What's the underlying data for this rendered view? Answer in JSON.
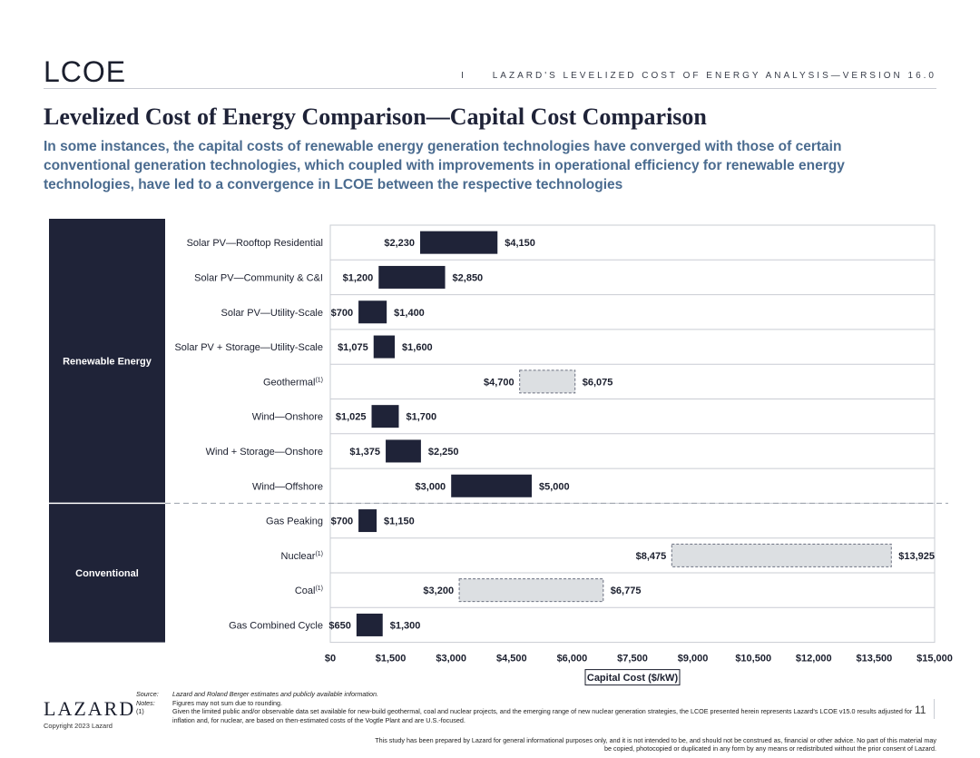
{
  "header": {
    "logo_text": "LCOE",
    "section_marker": "I",
    "report_title": "LAZARD'S LEVELIZED COST OF ENERGY ANALYSIS—VERSION 16.0"
  },
  "page": {
    "title": "Levelized Cost of Energy Comparison—Capital Cost Comparison",
    "subtitle": "In some instances, the capital costs of renewable energy generation technologies have converged with those of certain conventional generation technologies, which coupled with improvements in operational efficiency for renewable energy technologies, have led to a convergence in LCOE between the respective technologies"
  },
  "chart_data": {
    "type": "bar",
    "subtype": "floating-range-horizontal",
    "xlabel": "Capital Cost ($/kW)",
    "xlim": [
      0,
      15000
    ],
    "xticks": [
      "$0",
      "$1,500",
      "$3,000",
      "$4,500",
      "$6,000",
      "$7,500",
      "$9,000",
      "$10,500",
      "$12,000",
      "$13,500",
      "$15,000"
    ],
    "groups": [
      {
        "name": "Renewable Energy",
        "categories": [
          "Solar PV—Rooftop Residential",
          "Solar PV—Community & C&I",
          "Solar PV—Utility-Scale",
          "Solar PV + Storage—Utility-Scale",
          "Geothermal",
          "Wind—Onshore",
          "Wind + Storage—Onshore",
          "Wind—Offshore"
        ]
      },
      {
        "name": "Conventional",
        "categories": [
          "Gas Peaking",
          "Nuclear",
          "Coal",
          "Gas Combined Cycle"
        ]
      }
    ],
    "categories": [
      "Solar PV—Rooftop Residential",
      "Solar PV—Community & C&I",
      "Solar PV—Utility-Scale",
      "Solar PV + Storage—Utility-Scale",
      "Geothermal",
      "Wind—Onshore",
      "Wind + Storage—Onshore",
      "Wind—Offshore",
      "Gas Peaking",
      "Nuclear",
      "Coal",
      "Gas Combined Cycle"
    ],
    "footnote_marks": [
      "",
      "",
      "",
      "",
      "(1)",
      "",
      "",
      "",
      "",
      "(1)",
      "(1)",
      ""
    ],
    "low": [
      2230,
      1200,
      700,
      1075,
      4700,
      1025,
      1375,
      3000,
      700,
      8475,
      3200,
      650
    ],
    "high": [
      4150,
      2850,
      1400,
      1600,
      6075,
      1700,
      2250,
      5000,
      1150,
      13925,
      6775,
      1300
    ],
    "low_labels": [
      "$2,230",
      "$1,200",
      "$700",
      "$1,075",
      "$4,700",
      "$1,025",
      "$1,375",
      "$3,000",
      "$700",
      "$8,475",
      "$3,200",
      "$650"
    ],
    "high_labels": [
      "$4,150",
      "$2,850",
      "$1,400",
      "$1,600",
      "$6,075",
      "$1,700",
      "$2,250",
      "$5,000",
      "$1,150",
      "$13,925",
      "$6,775",
      "$1,300"
    ],
    "dashed_style": [
      false,
      false,
      false,
      false,
      true,
      false,
      false,
      false,
      false,
      true,
      true,
      false
    ],
    "colors": {
      "bar": "#1f2338",
      "dashed_fill": "#dcdfe2",
      "group_panel": "#1f2338",
      "grid": "#c9ccd3"
    }
  },
  "footer": {
    "source_key": "Source:",
    "source_text": "Lazard and Roland Berger estimates and publicly available information.",
    "notes_key": "Notes:",
    "notes_text": "Figures may not sum due to rounding.",
    "note1_key": "(1)",
    "note1_text": "Given the limited public and/or observable data set available for new-build geothermal, coal and nuclear projects, and the emerging range of new nuclear generation strategies, the LCOE presented herein represents Lazard's LCOE v15.0 results adjusted for inflation and, for nuclear, are based on then-estimated costs of the Vogtle Plant and are U.S.-focused.",
    "brand": "LAZARD",
    "copyright": "Copyright 2023 Lazard",
    "page_number": "11",
    "disclaimer": "This study has been prepared by Lazard for general informational purposes only, and it is not intended to be, and should not be construed as, financial or other advice. No part of this material may be copied, photocopied or duplicated in any form by any means or redistributed without the prior consent of Lazard."
  }
}
